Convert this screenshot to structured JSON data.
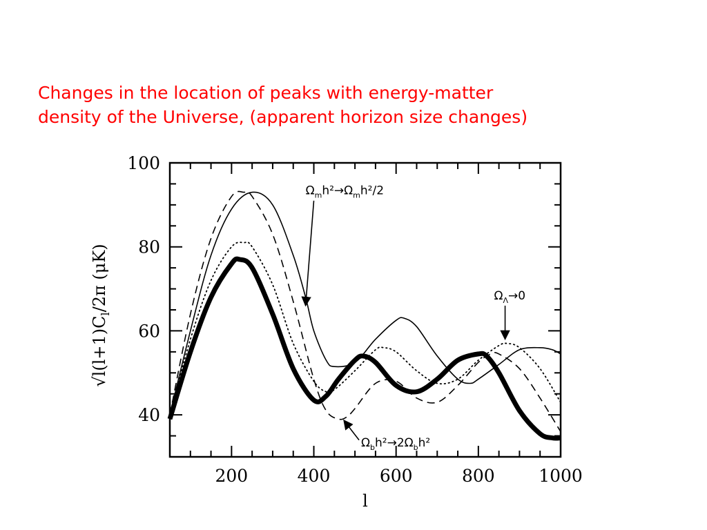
{
  "slide": {
    "title_line1": "Changes in the location of peaks with energy-matter",
    "title_line2": "density of the Universe, (apparent horizon size changes)"
  },
  "chart_data": {
    "type": "line",
    "xlabel": "l",
    "ylabel": "√l(l+1)C_l/2π (μK)",
    "xlim": [
      50,
      1000
    ],
    "ylim": [
      30,
      100
    ],
    "xticks": [
      200,
      400,
      600,
      800,
      1000
    ],
    "yticks": [
      40,
      60,
      80,
      100
    ],
    "grid": false,
    "series": [
      {
        "style": "thick-solid",
        "x": [
          50,
          100,
          150,
          200,
          220,
          250,
          300,
          350,
          400,
          430,
          460,
          500,
          520,
          550,
          600,
          650,
          700,
          750,
          800,
          820,
          850,
          900,
          950,
          980,
          1000
        ],
        "y": [
          39,
          55,
          68,
          76,
          77,
          75,
          64,
          51,
          43.5,
          44.5,
          48.5,
          53,
          54,
          52.5,
          47,
          45.5,
          48.5,
          53,
          54.5,
          54,
          50,
          41,
          35.5,
          34.5,
          34.5
        ]
      },
      {
        "style": "solid",
        "x": [
          50,
          100,
          150,
          200,
          250,
          300,
          350,
          380,
          400,
          430,
          450,
          500,
          550,
          600,
          620,
          650,
          700,
          750,
          780,
          800,
          850,
          900,
          950,
          980,
          1000
        ],
        "y": [
          40,
          60,
          78,
          89,
          93,
          90,
          78,
          68,
          60,
          53,
          51.5,
          52.5,
          58,
          62.5,
          63,
          61,
          54,
          48.5,
          47.5,
          48.5,
          52,
          55.5,
          56,
          55.5,
          54.5
        ]
      },
      {
        "style": "dashed",
        "x": [
          50,
          100,
          150,
          200,
          230,
          250,
          300,
          350,
          400,
          430,
          460,
          480,
          500,
          550,
          600,
          650,
          700,
          750,
          800,
          830,
          850,
          900,
          950,
          1000
        ],
        "y": [
          40,
          64,
          82,
          92,
          93,
          92,
          83,
          67,
          48.5,
          41,
          39,
          39.5,
          41.5,
          47.5,
          48,
          44,
          43,
          47,
          52.5,
          54.5,
          54.5,
          51,
          44,
          36
        ]
      },
      {
        "style": "dotted",
        "x": [
          50,
          100,
          150,
          200,
          230,
          250,
          300,
          350,
          400,
          430,
          450,
          500,
          550,
          570,
          600,
          650,
          700,
          750,
          800,
          850,
          870,
          900,
          950,
          1000
        ],
        "y": [
          40,
          58,
          72,
          80,
          81,
          80,
          71,
          57,
          48,
          45.5,
          46,
          50.5,
          55.5,
          56,
          55,
          50.5,
          47.5,
          48.5,
          53,
          56.5,
          57,
          56,
          51,
          43
        ]
      }
    ],
    "annotations": [
      {
        "text": "Ω_m h² → Ω_m h²/2",
        "arrow_from": [
          400,
          91
        ],
        "arrow_to": [
          380,
          66
        ]
      },
      {
        "text": "Ω_Λ → 0",
        "arrow_from": [
          865,
          66
        ],
        "arrow_to": [
          865,
          58
        ]
      },
      {
        "text": "Ω_b h² → 2Ω_b h²",
        "arrow_from": [
          510,
          34
        ],
        "arrow_to": [
          473,
          38.7
        ]
      }
    ]
  }
}
